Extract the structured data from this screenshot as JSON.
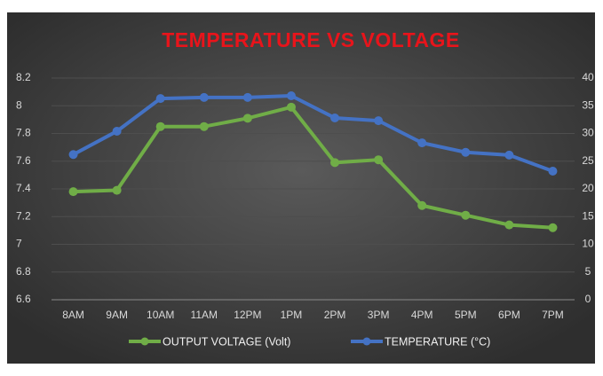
{
  "chart_data": {
    "type": "line",
    "title": "TEMPERATURE VS VOLTAGE",
    "categories": [
      "8AM",
      "9AM",
      "10AM",
      "11AM",
      "12PM",
      "1PM",
      "2PM",
      "3PM",
      "4PM",
      "5PM",
      "6PM",
      "7PM"
    ],
    "series": [
      {
        "name": "OUTPUT VOLTAGE (Volt)",
        "color": "#70ad47",
        "values": [
          7.38,
          7.39,
          7.85,
          7.85,
          7.91,
          7.99,
          7.59,
          7.61,
          7.28,
          7.21,
          7.14,
          7.12
        ]
      },
      {
        "name": "TEMPERATURE (°C)",
        "color": "#4472c4",
        "axis": "y2",
        "values": [
          26.2,
          30.4,
          36.3,
          36.5,
          36.5,
          36.8,
          32.8,
          32.3,
          28.3,
          26.6,
          26.1,
          23.2
        ]
      }
    ],
    "ylim": [
      6.6,
      8.2
    ],
    "yticks": [
      6.6,
      6.8,
      7,
      7.2,
      7.4,
      7.6,
      7.8,
      8,
      8.2
    ],
    "y2lim": [
      0,
      40
    ],
    "y2ticks": [
      0,
      5,
      10,
      15,
      20,
      25,
      30,
      35,
      40
    ],
    "grid": true,
    "legend": "bottom"
  }
}
